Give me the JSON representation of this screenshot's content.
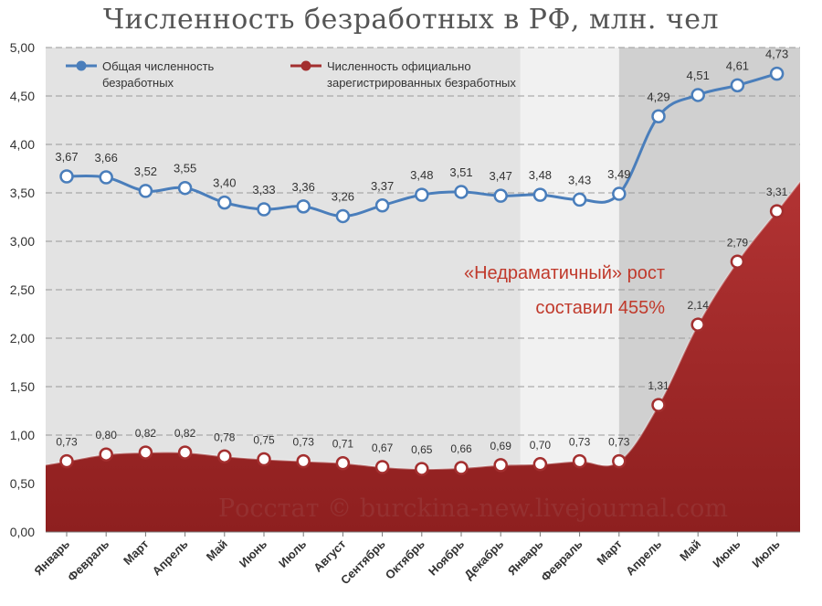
{
  "chart_data": {
    "type": "line",
    "title": "Численность безработных в РФ, млн. чел",
    "categories": [
      "Январь",
      "Февраль",
      "Март",
      "Апрель",
      "Май",
      "Июнь",
      "Июль",
      "Август",
      "Сентябрь",
      "Октябрь",
      "Ноябрь",
      "Декабрь",
      "Январь",
      "Февраль",
      "Март",
      "Апрель",
      "Май",
      "Июнь",
      "Июль"
    ],
    "series": [
      {
        "name": "Общая численность безработных",
        "color": "#4a7ebb",
        "values": [
          3.67,
          3.66,
          3.52,
          3.55,
          3.4,
          3.33,
          3.36,
          3.26,
          3.37,
          3.48,
          3.51,
          3.47,
          3.48,
          3.43,
          3.49,
          4.29,
          4.51,
          4.61,
          4.73
        ],
        "labels": [
          "3,67",
          "3,66",
          "3,52",
          "3,55",
          "3,40",
          "3,33",
          "3,36",
          "3,26",
          "3,37",
          "3,48",
          "3,51",
          "3,47",
          "3,48",
          "3,43",
          "3,49",
          "4,29",
          "4,51",
          "4,61",
          "4,73"
        ]
      },
      {
        "name": "Численность официально зарегистрированных безработных",
        "color": "#a32f2f",
        "values": [
          0.73,
          0.8,
          0.82,
          0.82,
          0.78,
          0.75,
          0.73,
          0.71,
          0.67,
          0.65,
          0.66,
          0.69,
          0.7,
          0.73,
          0.73,
          1.31,
          2.14,
          2.79,
          3.31
        ],
        "labels": [
          "0,73",
          "0,80",
          "0,82",
          "0,82",
          "0,78",
          "0,75",
          "0,73",
          "0,71",
          "0,67",
          "0,65",
          "0,66",
          "0,69",
          "0,70",
          "0,73",
          "0,73",
          "1,31",
          "2,14",
          "2,79",
          "3,31"
        ]
      }
    ],
    "ylim": [
      0,
      5
    ],
    "yticks": [
      "0,00",
      "0,50",
      "1,00",
      "1,50",
      "2,00",
      "2,50",
      "3,00",
      "3,50",
      "4,00",
      "4,50",
      "5,00"
    ],
    "grid": true,
    "legend": "top-left",
    "annotation": [
      "«Недраматичный» рост",
      "составил 455%"
    ],
    "watermark": "Росстат © burckina-new.livejournal.com"
  }
}
